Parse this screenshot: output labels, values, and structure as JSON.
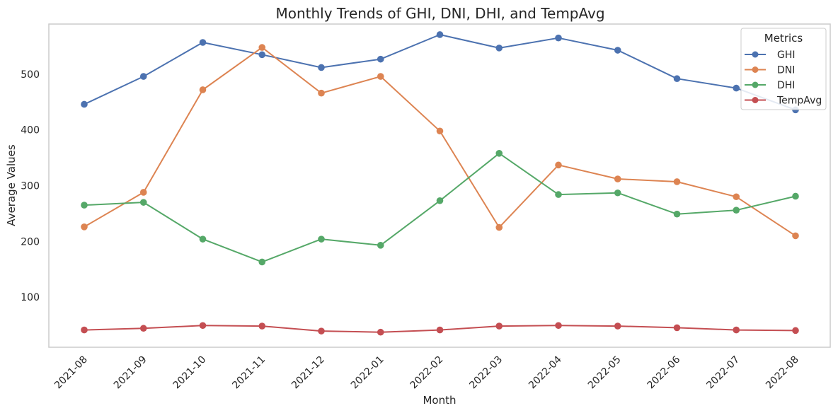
{
  "chart_data": {
    "type": "line",
    "title": "Monthly Trends of GHI, DNI, DHI, and TempAvg",
    "xlabel": "Month",
    "ylabel": "Average Values",
    "categories": [
      "2021-08",
      "2021-09",
      "2021-10",
      "2021-11",
      "2021-12",
      "2022-01",
      "2022-02",
      "2022-03",
      "2022-04",
      "2022-05",
      "2022-06",
      "2022-07",
      "2022-08"
    ],
    "ylim": [
      10,
      590
    ],
    "yticks": [
      100,
      200,
      300,
      400,
      500
    ],
    "grid": false,
    "legend": {
      "title": "Metrics",
      "placement": "top-right"
    },
    "series": [
      {
        "name": "GHI",
        "color": "#4c72b0",
        "values": [
          446,
          496,
          557,
          535,
          512,
          527,
          571,
          547,
          565,
          543,
          492,
          475,
          436
        ]
      },
      {
        "name": "DNI",
        "color": "#dd8452",
        "values": [
          226,
          288,
          472,
          548,
          466,
          496,
          398,
          225,
          337,
          312,
          307,
          280,
          210
        ]
      },
      {
        "name": "DHI",
        "color": "#55a868",
        "values": [
          265,
          270,
          204,
          163,
          204,
          193,
          273,
          358,
          284,
          287,
          249,
          256,
          281
        ]
      },
      {
        "name": "TempAvg",
        "color": "#c44e52",
        "values": [
          41,
          44,
          49,
          48,
          39,
          37,
          41,
          48,
          49,
          48,
          45,
          41,
          40
        ]
      }
    ]
  }
}
